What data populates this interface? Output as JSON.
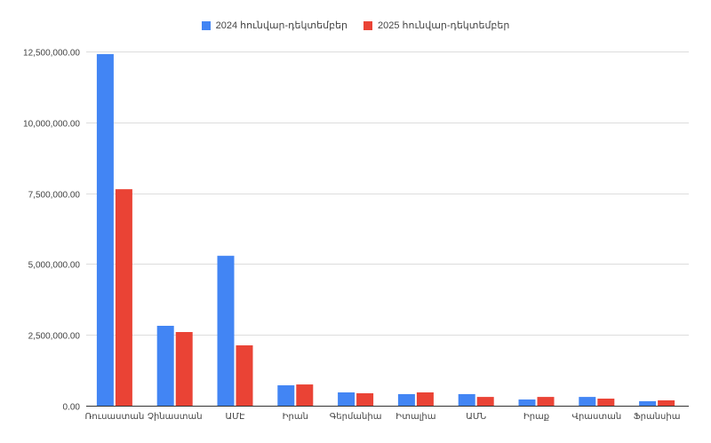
{
  "chart_data": {
    "type": "bar",
    "title": "",
    "xlabel": "",
    "ylabel": "",
    "ylim": [
      0,
      12500000
    ],
    "yticks": [
      0,
      2500000,
      5000000,
      7500000,
      10000000,
      12500000
    ],
    "ytick_labels": [
      "0.00",
      "2,500,000.00",
      "5,000,000.00",
      "7,500,000.00",
      "10,000,000.00",
      "12,500,000.00"
    ],
    "grid": true,
    "legend_position": "top-center",
    "categories": [
      "Ռուսաստան",
      "Չինաստան",
      "ԱՄԷ",
      "Իրան",
      "Գերմանիա",
      "Իտալիա",
      "ԱՄՆ",
      "Իրաք",
      "Վրաստան",
      "Ֆրանսիա"
    ],
    "series": [
      {
        "name": "2024 հունվար-դեկտեմբեր",
        "color": "#4285f4",
        "values": [
          12410000,
          2820000,
          5290000,
          720000,
          470000,
          410000,
          410000,
          220000,
          310000,
          160000
        ]
      },
      {
        "name": "2025 հունվար-դեկտեմբեր",
        "color": "#ea4335",
        "values": [
          7640000,
          2600000,
          2130000,
          750000,
          440000,
          470000,
          310000,
          310000,
          250000,
          190000
        ]
      }
    ]
  }
}
